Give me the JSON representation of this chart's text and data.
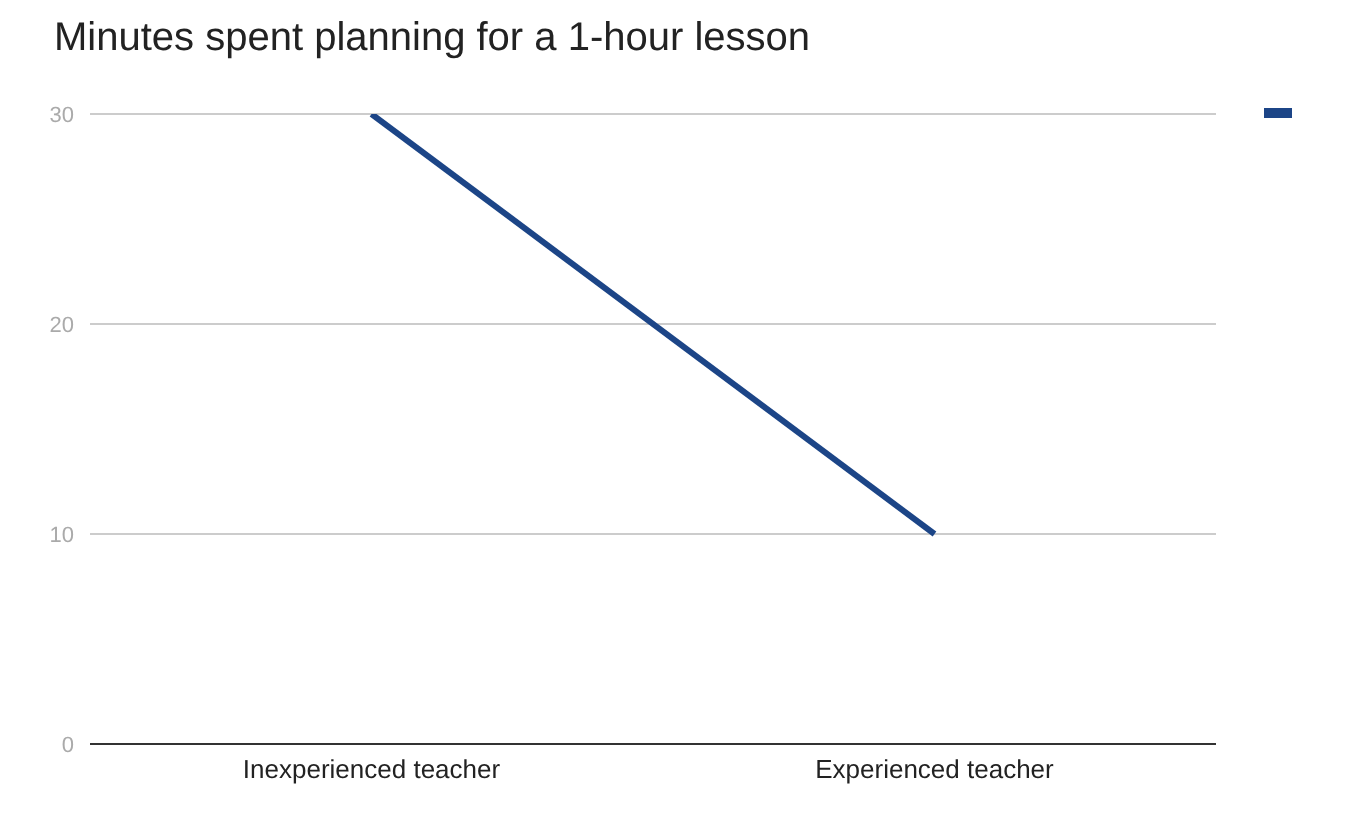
{
  "chart_data": {
    "type": "line",
    "title": "Minutes spent planning for a 1-hour lesson",
    "categories": [
      "Inexperienced teacher",
      "Experienced teacher"
    ],
    "series": [
      {
        "color": "#1c4587",
        "values": [
          30,
          10
        ]
      }
    ],
    "ylim": [
      0,
      30
    ],
    "yticks": [
      0,
      10,
      20,
      30
    ],
    "grid": "y",
    "marker": "none"
  }
}
